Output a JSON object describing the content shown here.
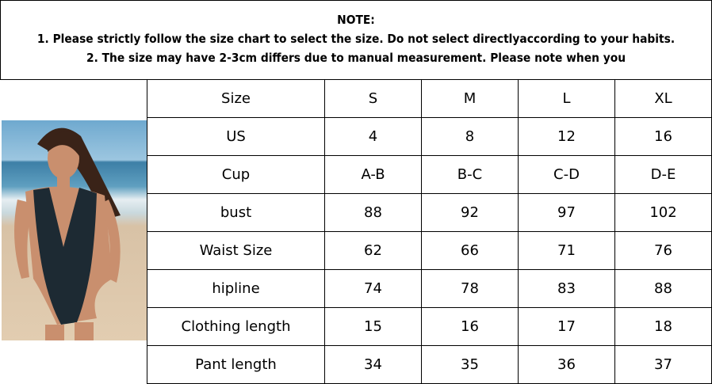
{
  "note": {
    "title": "NOTE:",
    "line1": "1. Please strictly follow the size chart to select the size. Do not select directlyaccording to your habits.",
    "line2": "2. The size may have 2-3cm differs due to manual measurement. Please note when you"
  },
  "photo": {
    "description_icon": "model-swimsuit-photo"
  },
  "table": {
    "rows": [
      {
        "label": "Size",
        "values": [
          "S",
          "M",
          "L",
          "XL"
        ]
      },
      {
        "label": "US",
        "values": [
          "4",
          "8",
          "12",
          "16"
        ]
      },
      {
        "label": "Cup",
        "values": [
          "A-B",
          "B-C",
          "C-D",
          "D-E"
        ]
      },
      {
        "label": "bust",
        "values": [
          "88",
          "92",
          "97",
          "102"
        ]
      },
      {
        "label": "Waist Size",
        "values": [
          "62",
          "66",
          "71",
          "76"
        ]
      },
      {
        "label": "hipline",
        "values": [
          "74",
          "78",
          "83",
          "88"
        ]
      },
      {
        "label": "Clothing length",
        "values": [
          "15",
          "16",
          "17",
          "18"
        ]
      },
      {
        "label": "Pant length",
        "values": [
          "34",
          "35",
          "36",
          "37"
        ]
      }
    ]
  }
}
